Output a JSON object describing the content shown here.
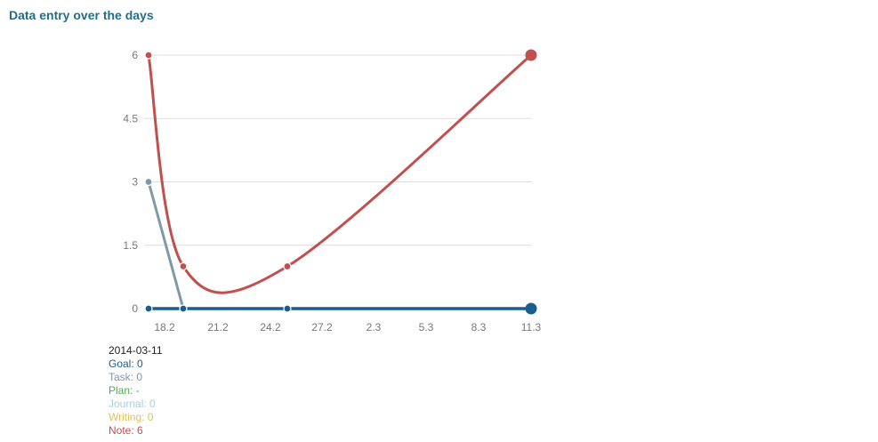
{
  "page": {
    "title": "Data entry over the days"
  },
  "chart_data": {
    "type": "line",
    "title": "Data entry over the days",
    "xlabel": "",
    "ylabel": "",
    "x_tick_labels": [
      "18.2",
      "21.2",
      "24.2",
      "27.2",
      "2.3",
      "5.3",
      "8.3",
      "11.3"
    ],
    "y_ticks": [
      0,
      1.5,
      3,
      4.5,
      6
    ],
    "y_tick_labels": [
      "0",
      "1.5",
      "3",
      "4.5",
      "6"
    ],
    "ylim": [
      0,
      6
    ],
    "grid": true,
    "series": [
      {
        "name": "Goal",
        "color": "#1a5e8e",
        "x": [
          "16.2",
          "18.2",
          "24.2",
          "11.3"
        ],
        "y": [
          0,
          0,
          0,
          0
        ]
      },
      {
        "name": "Task",
        "color": "#7f99a8",
        "x": [
          "16.2",
          "18.2"
        ],
        "y": [
          3,
          0
        ]
      },
      {
        "name": "Note",
        "color": "#c0504d",
        "x": [
          "16.2",
          "18.2",
          "24.2",
          "11.3"
        ],
        "y": [
          6,
          1,
          1,
          6
        ]
      }
    ]
  },
  "legend": {
    "date": "2014-03-11",
    "items": [
      {
        "label": "Goal: 0",
        "color": "#1a5e8e"
      },
      {
        "label": "Task: 0",
        "color": "#7f99a8"
      },
      {
        "label": "Plan: -",
        "color": "#4caf50"
      },
      {
        "label": "Journal: 0",
        "color": "#a7cfe0"
      },
      {
        "label": "Writing: 0",
        "color": "#e0c060"
      },
      {
        "label": "Note: 6",
        "color": "#c0504d"
      }
    ]
  }
}
